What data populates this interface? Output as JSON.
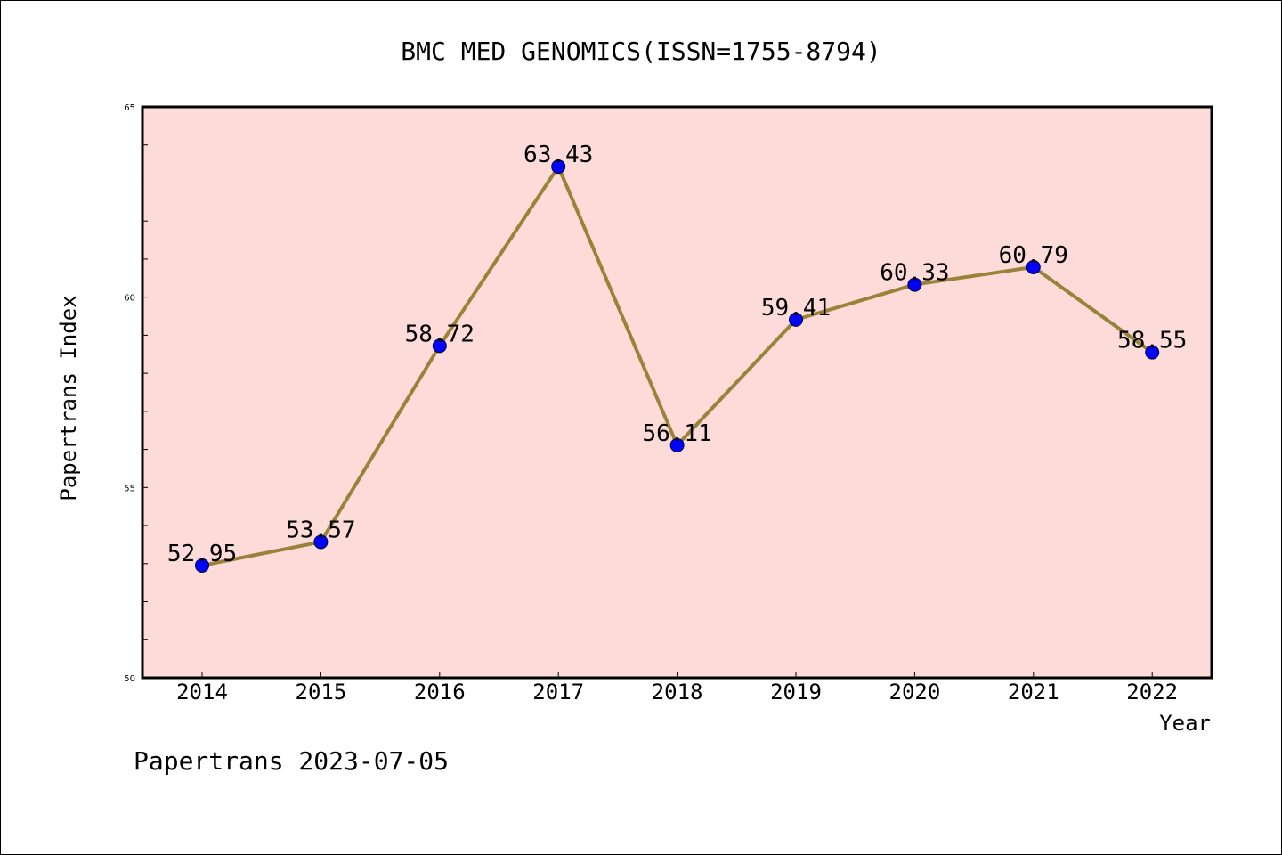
{
  "chart_data": {
    "type": "line",
    "title": "BMC MED GENOMICS(ISSN=1755-8794)",
    "xlabel": "Year",
    "ylabel": "Papertrans Index",
    "footer": "Papertrans 2023-07-05",
    "categories": [
      "2014",
      "2015",
      "2016",
      "2017",
      "2018",
      "2019",
      "2020",
      "2021",
      "2022"
    ],
    "values": [
      52.95,
      53.57,
      58.72,
      63.43,
      56.11,
      59.41,
      60.33,
      60.79,
      58.55
    ],
    "data_labels": [
      "52.95",
      "53.57",
      "58.72",
      "63.43",
      "56.11",
      "59.41",
      "60.33",
      "60.79",
      "58.55"
    ],
    "ylim": [
      50,
      65
    ],
    "yticks": [
      50,
      55,
      60,
      65
    ],
    "ytick_labels": [
      "50",
      "55",
      "60",
      "65"
    ],
    "grid": false,
    "colors": {
      "plot_background": "#fddbd8",
      "line": "#9a8239",
      "marker": "#0000ff"
    }
  }
}
